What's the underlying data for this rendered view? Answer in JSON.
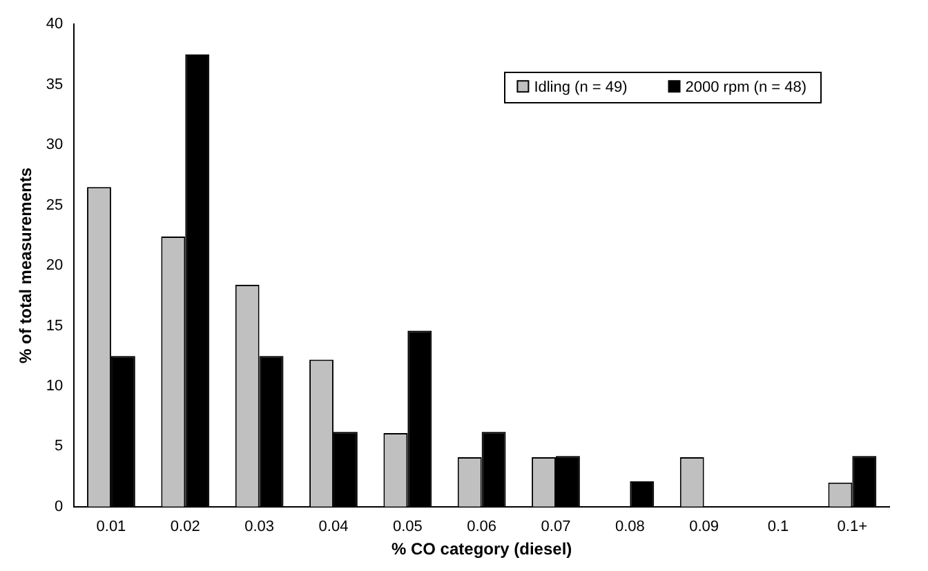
{
  "chart_data": {
    "type": "bar",
    "xlabel": "% CO category (diesel)",
    "ylabel": "% of total measurements",
    "categories": [
      "0.01",
      "0.02",
      "0.03",
      "0.04",
      "0.05",
      "0.06",
      "0.07",
      "0.08",
      "0.09",
      "0.1",
      "0.1+"
    ],
    "series": [
      {
        "name": "Idling (n = 49)",
        "color": "#c0c0c0",
        "values": [
          26.5,
          22.4,
          18.4,
          12.2,
          6.1,
          4.1,
          4.1,
          0,
          4.1,
          0,
          2.0
        ]
      },
      {
        "name": "2000 rpm (n = 48)",
        "color": "#000000",
        "values": [
          12.5,
          37.5,
          12.5,
          6.2,
          14.6,
          6.2,
          4.2,
          2.1,
          0,
          0,
          4.2
        ]
      }
    ],
    "ylim": [
      0,
      40
    ],
    "yticks": [
      0,
      5,
      10,
      15,
      20,
      25,
      30,
      35,
      40
    ],
    "grid": false,
    "legend": "top right"
  }
}
